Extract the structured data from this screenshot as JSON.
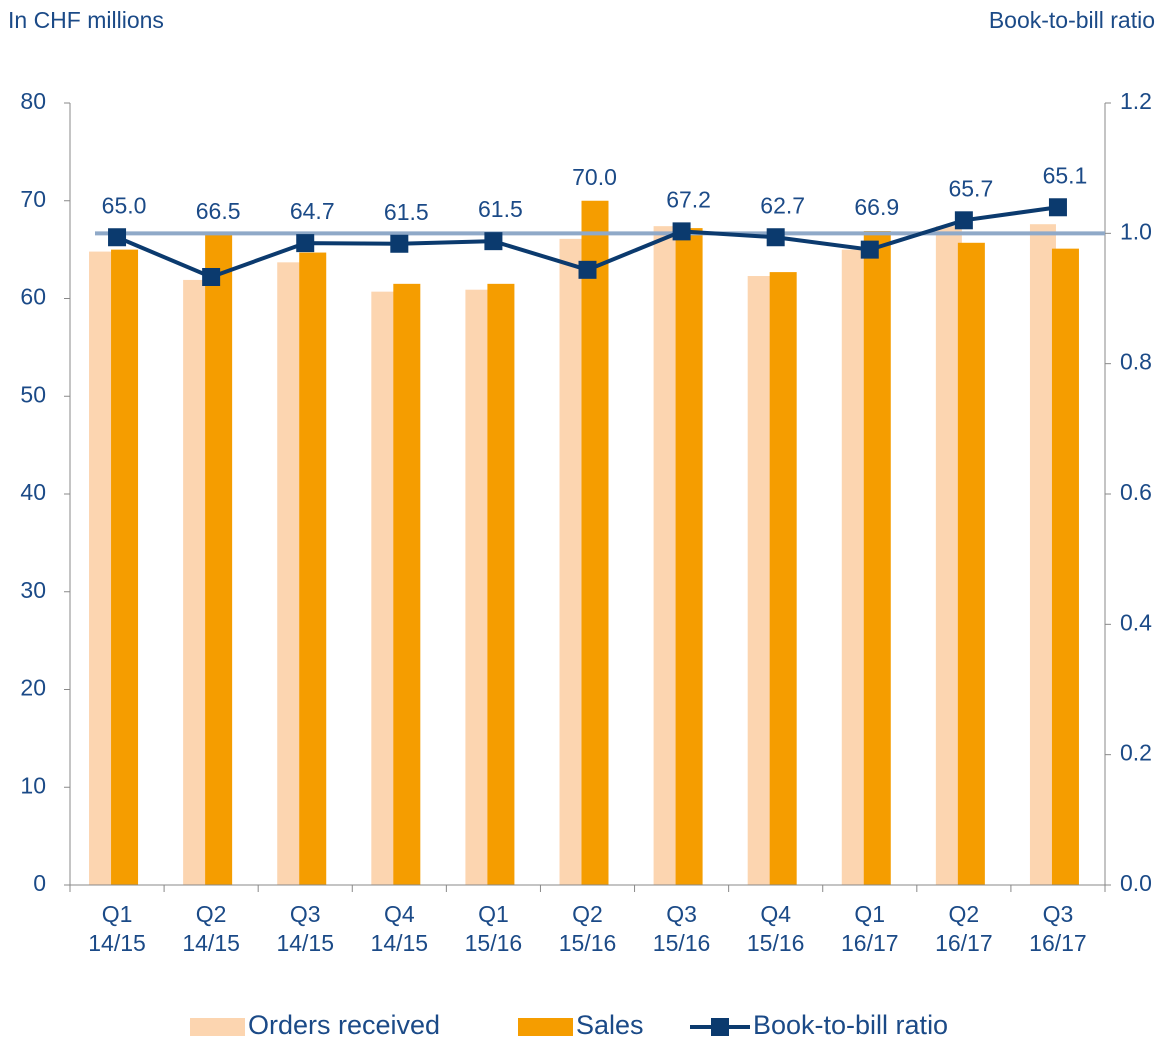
{
  "chart_data": {
    "type": "bar_line",
    "y_label": "In CHF millions",
    "y2_label": "Book-to-bill ratio",
    "categories": [
      "Q1\n14/15",
      "Q2\n14/15",
      "Q3\n14/15",
      "Q4\n14/15",
      "Q1\n15/16",
      "Q2\n15/16",
      "Q3\n15/16",
      "Q4\n15/16",
      "Q1\n16/17",
      "Q2\n16/17",
      "Q3\n16/17"
    ],
    "series": [
      {
        "name": "Orders received",
        "type": "bar",
        "color": "#fcd5b0",
        "values": [
          64.8,
          61.9,
          63.7,
          60.7,
          60.9,
          66.1,
          67.4,
          62.3,
          65.0,
          67.4,
          67.6
        ]
      },
      {
        "name": "Sales",
        "type": "bar",
        "color": "#f59d00",
        "values": [
          65.0,
          66.5,
          64.7,
          61.5,
          61.5,
          70.0,
          67.2,
          62.7,
          66.9,
          65.7,
          65.1
        ],
        "value_labels": [
          "65.0",
          "66.5",
          "64.7",
          "61.5",
          "61.5",
          "70.0",
          "67.2",
          "62.7",
          "66.9",
          "65.7",
          "65.1"
        ]
      },
      {
        "name": "Book-to-bill ratio",
        "type": "line",
        "axis": "y2",
        "color": "#0b3a6e",
        "values": [
          0.994,
          0.933,
          0.985,
          0.984,
          0.988,
          0.944,
          1.003,
          0.994,
          0.975,
          1.02,
          1.04
        ]
      }
    ],
    "reference_line": {
      "value": 1.0,
      "axis": "y2",
      "color": "#8fa9c8"
    },
    "ylim": [
      0,
      80
    ],
    "yticks": [
      0,
      10,
      20,
      30,
      40,
      50,
      60,
      70,
      80
    ],
    "y2lim": [
      0,
      1.2
    ],
    "y2ticks": [
      {
        "value": 0,
        "label": "0.0"
      },
      {
        "value": 0.2,
        "label": "0.2"
      },
      {
        "value": 0.4,
        "label": "0.4"
      },
      {
        "value": 0.6,
        "label": "0.6"
      },
      {
        "value": 0.8,
        "label": "0.8"
      },
      {
        "value": 1.0,
        "label": "1.0"
      },
      {
        "value": 1.2,
        "label": "1.2"
      }
    ],
    "legend": "bottom"
  }
}
